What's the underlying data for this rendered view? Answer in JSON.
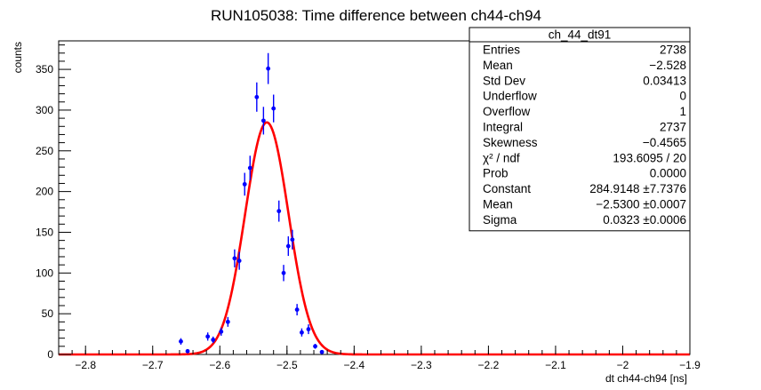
{
  "chart_data": {
    "type": "scatter",
    "title": "RUN105038: Time difference between ch44-ch94",
    "xlabel": "dt ch44-ch94 [ns]",
    "ylabel": "counts",
    "xlim": [
      -2.84,
      -1.9
    ],
    "ylim": [
      0,
      385
    ],
    "x_ticks": [
      -2.8,
      -2.7,
      -2.6,
      -2.5,
      -2.4,
      -2.3,
      -2.2,
      -2.1,
      -2.0,
      -1.9
    ],
    "x_tick_labels": [
      "−2.8",
      "−2.7",
      "−2.6",
      "−2.5",
      "−2.4",
      "−2.3",
      "−2.2",
      "−2.1",
      "−2",
      "−1.9"
    ],
    "y_ticks": [
      0,
      50,
      100,
      150,
      200,
      250,
      300,
      350
    ],
    "y_tick_labels": [
      "0",
      "50",
      "100",
      "150",
      "200",
      "250",
      "300",
      "350"
    ],
    "grid": false,
    "legend": "none",
    "colors": {
      "points": "#0000ff",
      "fit": "#ff0000",
      "axis": "#000000"
    },
    "series": [
      {
        "kind": "points_with_error_bars",
        "x": [
          -2.658,
          -2.648,
          -2.618,
          -2.61,
          -2.598,
          -2.588,
          -2.578,
          -2.571,
          -2.563,
          -2.555,
          -2.545,
          -2.535,
          -2.528,
          -2.52,
          -2.512,
          -2.505,
          -2.498,
          -2.492,
          -2.485,
          -2.478,
          -2.468,
          -2.458,
          -2.448
        ],
        "y": [
          16,
          4,
          22,
          18,
          28,
          40,
          118,
          115,
          209,
          229,
          316,
          287,
          351,
          302,
          176,
          100,
          133,
          141,
          55,
          27,
          31,
          10,
          3
        ],
        "err": [
          4,
          2,
          5,
          4,
          5,
          6,
          11,
          11,
          14,
          15,
          18,
          17,
          19,
          17,
          13,
          10,
          12,
          12,
          7,
          5,
          6,
          3,
          2
        ]
      },
      {
        "kind": "gaussian_fit",
        "constant": 284.9148,
        "mean": -2.53,
        "sigma": 0.0323
      }
    ],
    "stats_box": {
      "placement": "top-right",
      "header": "ch_44_dt91",
      "rows": [
        {
          "label": "Entries",
          "value": "2738"
        },
        {
          "label": "Mean",
          "value": "−2.528"
        },
        {
          "label": "Std Dev",
          "value": "0.03413"
        },
        {
          "label": "Underflow",
          "value": "0"
        },
        {
          "label": "Overflow",
          "value": "1"
        },
        {
          "label": "Integral",
          "value": "2737"
        },
        {
          "label": "Skewness",
          "value": "−0.4565"
        },
        {
          "label": "χ² / ndf",
          "value": "193.6095 / 20"
        },
        {
          "label": "Prob",
          "value": "0.0000"
        },
        {
          "label": "Constant",
          "value": "284.9148 ±7.7376"
        },
        {
          "label": "Mean",
          "value": "−2.5300 ±0.0007"
        },
        {
          "label": "Sigma",
          "value": "0.0323 ±0.0006"
        }
      ]
    }
  }
}
